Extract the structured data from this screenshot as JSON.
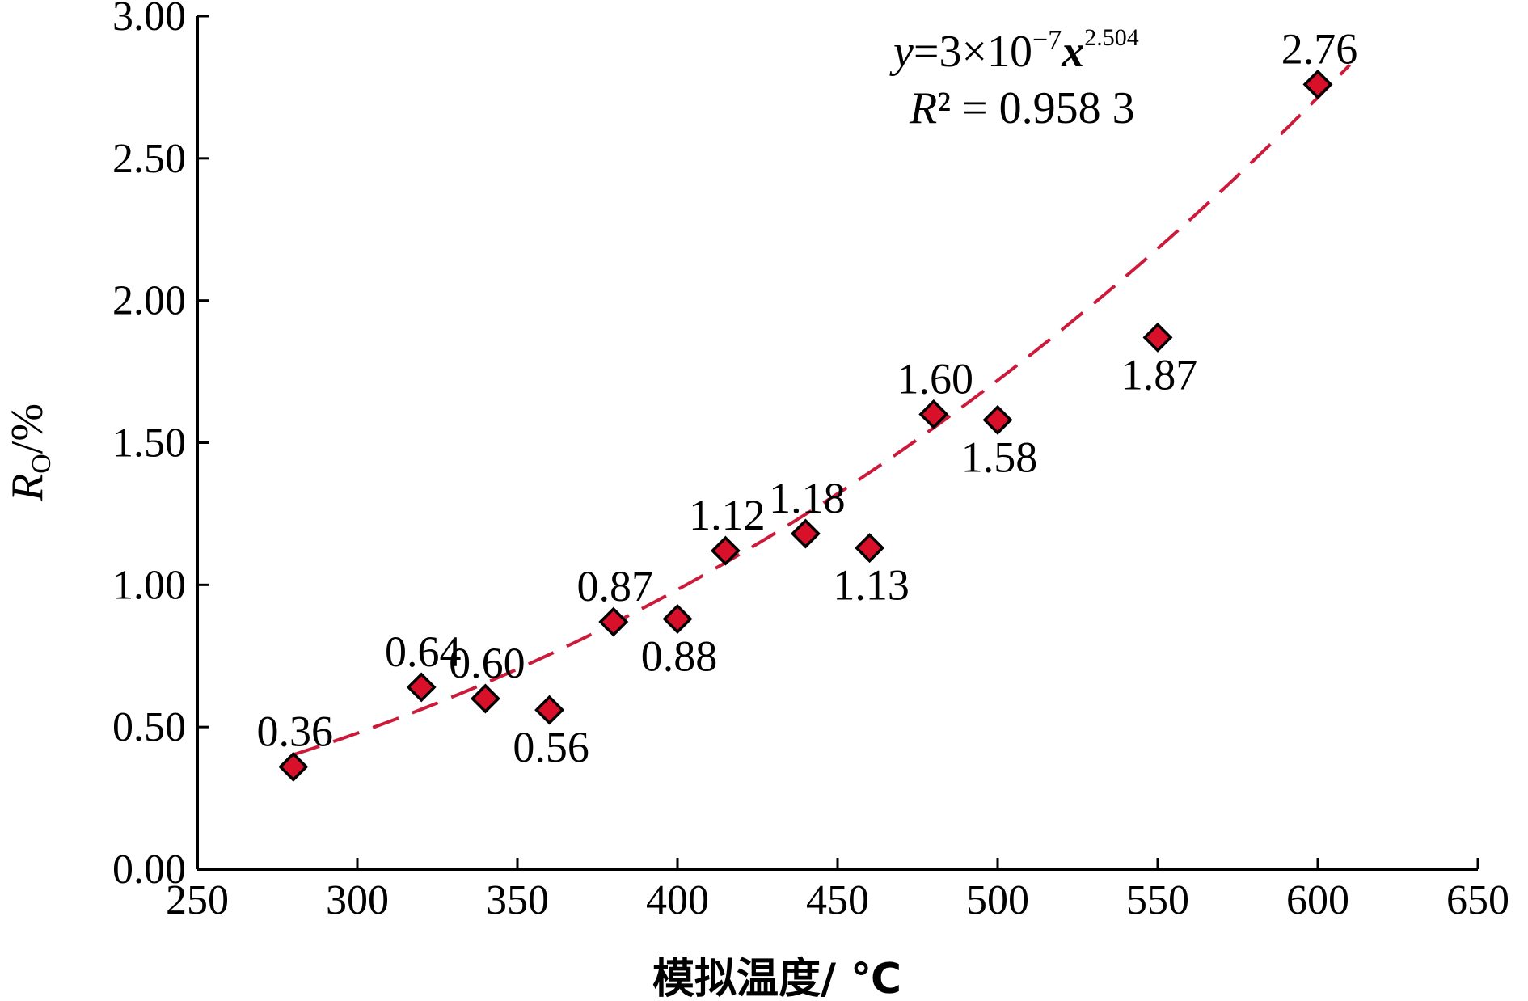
{
  "chart_data": {
    "type": "scatter",
    "xlabel": "模拟温度/ ℃",
    "ylabel_main": "R",
    "ylabel_sub": "O",
    "ylabel_unit": "/%",
    "xlim": [
      250,
      650
    ],
    "ylim": [
      0,
      3
    ],
    "x_ticks": [
      "250",
      "300",
      "350",
      "400",
      "450",
      "500",
      "550",
      "600",
      "650"
    ],
    "y_ticks": [
      "0.00",
      "0.50",
      "1.00",
      "1.50",
      "2.00",
      "2.50",
      "3.00"
    ],
    "series": [
      {
        "points": [
          {
            "x": 280,
            "y": 0.36,
            "label": "0.36"
          },
          {
            "x": 320,
            "y": 0.64,
            "label": "0.64"
          },
          {
            "x": 340,
            "y": 0.6,
            "label": "0.60"
          },
          {
            "x": 360,
            "y": 0.56,
            "label": "0.56"
          },
          {
            "x": 380,
            "y": 0.87,
            "label": "0.87"
          },
          {
            "x": 400,
            "y": 0.88,
            "label": "0.88"
          },
          {
            "x": 415,
            "y": 1.12,
            "label": "1.12"
          },
          {
            "x": 440,
            "y": 1.18,
            "label": "1.18"
          },
          {
            "x": 460,
            "y": 1.13,
            "label": "1.13"
          },
          {
            "x": 480,
            "y": 1.6,
            "label": "1.60"
          },
          {
            "x": 500,
            "y": 1.58,
            "label": "1.58"
          },
          {
            "x": 550,
            "y": 1.87,
            "label": "1.87"
          },
          {
            "x": 600,
            "y": 2.76,
            "label": "2.76"
          }
        ]
      }
    ],
    "fit": {
      "type": "power",
      "coefficient": 3e-07,
      "exponent": 2.504,
      "x_range": [
        280,
        610
      ],
      "equation_parts": [
        "y",
        "=3×10",
        "−7",
        "x",
        "2.504"
      ],
      "r2_parts": [
        "R",
        "² = 0.958 3"
      ]
    },
    "colors": {
      "marker_fill": "#d8102a",
      "marker_stroke": "#000000",
      "fit_line": "#cc1a3a",
      "axis": "#000000"
    }
  }
}
